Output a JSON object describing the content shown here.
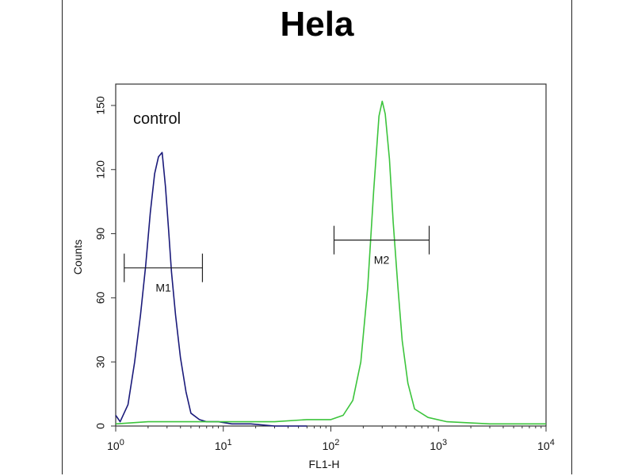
{
  "chart_data": {
    "type": "line",
    "title": "Hela",
    "xlabel": "FL1-H",
    "ylabel": "Counts",
    "x_scale": "log",
    "xlim": [
      1,
      10000
    ],
    "ylim": [
      0,
      160
    ],
    "x_ticks": [
      {
        "value": 1,
        "base": "10",
        "exp": "0"
      },
      {
        "value": 10,
        "base": "10",
        "exp": "1"
      },
      {
        "value": 100,
        "base": "10",
        "exp": "2"
      },
      {
        "value": 1000,
        "base": "10",
        "exp": "3"
      },
      {
        "value": 10000,
        "base": "10",
        "exp": "4"
      }
    ],
    "y_ticks": [
      "0",
      "30",
      "60",
      "90",
      "120",
      "150"
    ],
    "annotation": "control",
    "series": [
      {
        "color": "#1a1a7a",
        "x": [
          1.0,
          1.1,
          1.3,
          1.5,
          1.7,
          1.9,
          2.1,
          2.3,
          2.5,
          2.7,
          2.9,
          3.1,
          3.3,
          3.6,
          4.0,
          4.5,
          5.0,
          6.0,
          7.0,
          9.0,
          12.0,
          18.0,
          30.0,
          60.0
        ],
        "y": [
          5,
          2,
          10,
          30,
          52,
          75,
          100,
          118,
          126,
          128,
          112,
          92,
          72,
          52,
          32,
          16,
          6,
          3,
          2,
          2,
          1,
          1,
          0,
          0
        ]
      },
      {
        "color": "#3cc43c",
        "x": [
          1.0,
          2,
          5,
          10,
          30,
          60,
          100,
          130,
          160,
          190,
          220,
          250,
          280,
          300,
          320,
          350,
          380,
          420,
          460,
          520,
          600,
          800,
          1200,
          3000,
          10000
        ],
        "y": [
          1,
          2,
          2,
          2,
          2,
          3,
          3,
          5,
          12,
          30,
          65,
          110,
          145,
          152,
          146,
          125,
          95,
          65,
          40,
          20,
          8,
          4,
          2,
          1,
          1
        ]
      }
    ],
    "markers": [
      {
        "label": "M1",
        "x_start": 1.2,
        "x_end": 6.4,
        "y": 74
      },
      {
        "label": "M2",
        "x_start": 107,
        "x_end": 820,
        "y": 87
      }
    ]
  }
}
